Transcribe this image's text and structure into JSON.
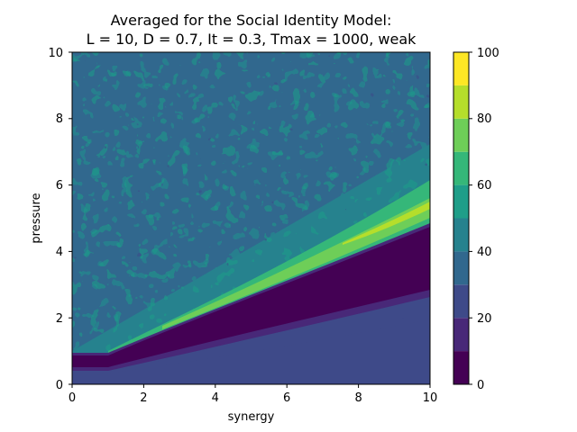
{
  "chart_data": {
    "type": "contourf",
    "title_lines": [
      "Averaged for the Social Identity Model:",
      "L = 10, D = 0.7, It = 0.3, Tmax = 1000, weak"
    ],
    "xlabel": "synergy",
    "ylabel": "pressure",
    "xlim": [
      0,
      10
    ],
    "ylim": [
      0,
      10
    ],
    "x_ticks": [
      "0",
      "2",
      "4",
      "6",
      "8",
      "10"
    ],
    "y_ticks": [
      "0",
      "2",
      "4",
      "6",
      "8",
      "10"
    ],
    "colorbar": {
      "range": [
        0,
        100
      ],
      "ticks": [
        "0",
        "20",
        "40",
        "60",
        "80",
        "100"
      ],
      "levels": [
        0,
        10,
        20,
        30,
        40,
        50,
        60,
        70,
        80,
        90,
        100
      ],
      "colors": [
        "#440154",
        "#482878",
        "#3e4a89",
        "#31688e",
        "#26828e",
        "#1f9e89",
        "#35b779",
        "#6ece58",
        "#b5de2b",
        "#fde725"
      ]
    },
    "regions": [
      {
        "name": "background",
        "value_range": [
          40,
          50
        ]
      },
      {
        "name": "mid-right band",
        "value_range": [
          50,
          60
        ]
      },
      {
        "name": "high ridge",
        "value_range": [
          60,
          80
        ],
        "along": "pressure ≈ 0.55·synergy + 0.5"
      },
      {
        "name": "low valley",
        "value_range": [
          0,
          10
        ],
        "along": "pressure ≈ 0.4·synergy + 0.6"
      },
      {
        "name": "bottom region",
        "value_range": [
          20,
          30
        ]
      }
    ]
  },
  "colorbar_label": "",
  "notes": ""
}
